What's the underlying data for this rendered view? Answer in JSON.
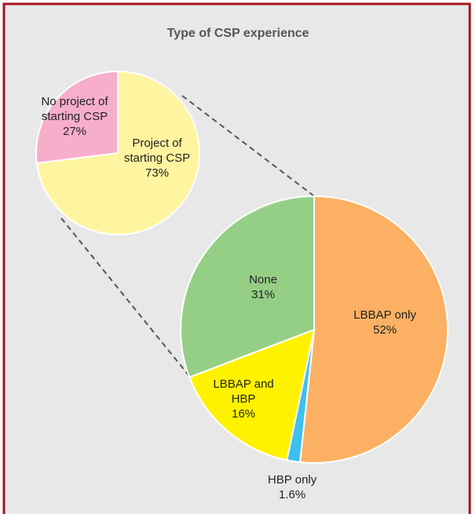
{
  "chart_data": [
    {
      "type": "pie",
      "title": "Type of CSP experience",
      "categories": [
        "Project of starting CSP",
        "No project of starting CSP"
      ],
      "values": [
        73,
        27
      ],
      "value_labels": [
        "73%",
        "27%"
      ],
      "colors": [
        "#fff5a0",
        "#f6aecb"
      ]
    },
    {
      "type": "pie",
      "categories": [
        "LBBAP only",
        "HBP only",
        "LBBAP and HBP",
        "None"
      ],
      "values": [
        52,
        1.6,
        16,
        31
      ],
      "value_labels": [
        "52%",
        "1.6%",
        "16%",
        "31%"
      ],
      "colors": [
        "#fbb063",
        "#3fbfef",
        "#fff200",
        "#95cf86"
      ]
    }
  ]
}
